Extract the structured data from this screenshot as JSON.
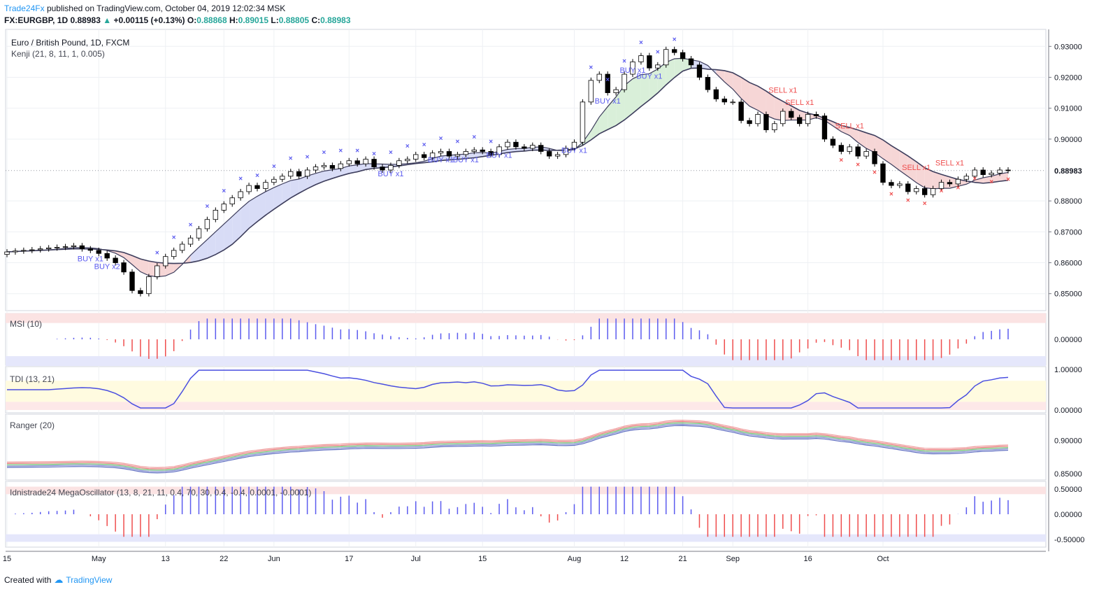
{
  "header": {
    "publisher": "Trade24Fx",
    "published_text": "published on TradingView.com, October 04, 2019 12:02:34 MSK",
    "symbol": "FX:EURGBP, 1D",
    "last": "0.88983",
    "change": "+0.00115 (+0.13%)",
    "o_label": "O:",
    "o": "0.88868",
    "h_label": "H:",
    "h": "0.89015",
    "l_label": "L:",
    "l": "0.88805",
    "c_label": "C:",
    "c": "0.88983"
  },
  "main_pane": {
    "title": "Euro / British Pound, 1D, FXCM",
    "indicator": "Kenji (21, 8, 11, 1, 0.005)",
    "price_ticks": [
      "0.93000",
      "0.92000",
      "0.91000",
      "0.90000",
      "0.88000",
      "0.87000",
      "0.86000",
      "0.85000"
    ],
    "last_price_label": "0.88983"
  },
  "panes": {
    "msi": {
      "label": "MSI (10)",
      "ticks": [
        "0.00000"
      ]
    },
    "tdi": {
      "label": "TDI (13, 21)",
      "ticks": [
        "1.00000",
        "0.00000"
      ]
    },
    "ranger": {
      "label": "Ranger (20)",
      "ticks": [
        "0.90000",
        "0.85000"
      ]
    },
    "mega": {
      "label": "Idnistrade24 MegaOscillator (13, 8, 21, 11, 0.4, 70, 30, 0.4, -0.4, 0.0001, -0.0001)",
      "ticks": [
        "0.50000",
        "0.00000",
        "-0.50000"
      ]
    }
  },
  "x_axis": [
    "15",
    "May",
    "13",
    "22",
    "Jun",
    "17",
    "Jul",
    "15",
    "Aug",
    "12",
    "21",
    "Sep",
    "16",
    "Oct"
  ],
  "signals": [
    {
      "text": "BUY x1",
      "x": 0.0
    },
    {
      "text": "BUY x2",
      "x": 0.0
    }
  ],
  "footer": {
    "created_with": "Created with",
    "brand": "TradingView"
  },
  "colors": {
    "bull_marker": "#5b5bef",
    "bear_marker": "#ef4d4d",
    "band_bull": "#d8dcf6",
    "band_bear": "#f6d6d6",
    "band_green": "#d9efd9",
    "accent": "#2196f3",
    "up": "#26a69a"
  },
  "chart_data": {
    "type": "candlestick",
    "symbol": "FX:EURGBP",
    "timeframe": "1D",
    "x_labels": [
      "15",
      "May",
      "13",
      "22",
      "Jun",
      "17",
      "Jul",
      "15",
      "Aug",
      "12",
      "21",
      "Sep",
      "16",
      "Oct"
    ],
    "x_label_index": [
      0,
      11,
      19,
      26,
      32,
      41,
      49,
      57,
      68,
      74,
      81,
      87,
      96,
      105
    ],
    "close": [
      0.8635,
      0.8638,
      0.864,
      0.8642,
      0.8645,
      0.8648,
      0.865,
      0.8652,
      0.8655,
      0.8645,
      0.864,
      0.863,
      0.8615,
      0.86,
      0.857,
      0.851,
      0.85,
      0.8555,
      0.859,
      0.862,
      0.864,
      0.866,
      0.868,
      0.871,
      0.874,
      0.877,
      0.879,
      0.881,
      0.883,
      0.885,
      0.884,
      0.886,
      0.887,
      0.888,
      0.8895,
      0.888,
      0.89,
      0.891,
      0.8915,
      0.8905,
      0.892,
      0.893,
      0.892,
      0.8935,
      0.891,
      0.89,
      0.8915,
      0.893,
      0.8935,
      0.895,
      0.894,
      0.8955,
      0.896,
      0.8945,
      0.895,
      0.896,
      0.8965,
      0.896,
      0.895,
      0.8975,
      0.899,
      0.8975,
      0.897,
      0.898,
      0.896,
      0.8945,
      0.895,
      0.897,
      0.899,
      0.912,
      0.919,
      0.921,
      0.915,
      0.916,
      0.921,
      0.925,
      0.927,
      0.923,
      0.924,
      0.929,
      0.928,
      0.926,
      0.924,
      0.92,
      0.916,
      0.913,
      0.912,
      0.912,
      0.906,
      0.905,
      0.908,
      0.903,
      0.905,
      0.909,
      0.907,
      0.905,
      0.908,
      0.9075,
      0.9,
      0.898,
      0.896,
      0.8975,
      0.8945,
      0.896,
      0.892,
      0.886,
      0.885,
      0.8855,
      0.883,
      0.884,
      0.882,
      0.884,
      0.886,
      0.8855,
      0.887,
      0.888,
      0.89,
      0.8885,
      0.889,
      0.89,
      0.8898
    ],
    "msi_range": [
      -1,
      1
    ],
    "tdi_range": [
      0,
      1
    ],
    "ranger_range": [
      0.845,
      0.935
    ],
    "mega_range": [
      -0.6,
      0.6
    ],
    "signals": [
      "BUY x1",
      "BUY x2",
      "BUY x1",
      "BUY x1",
      "BUY x1",
      "BUY x1",
      "BUY x1",
      "BUY x1",
      "BUY x1",
      "BUY x1",
      "SELL x1",
      "SELL x1",
      "SELL x1",
      "SELL x1",
      "SELL x1"
    ]
  }
}
